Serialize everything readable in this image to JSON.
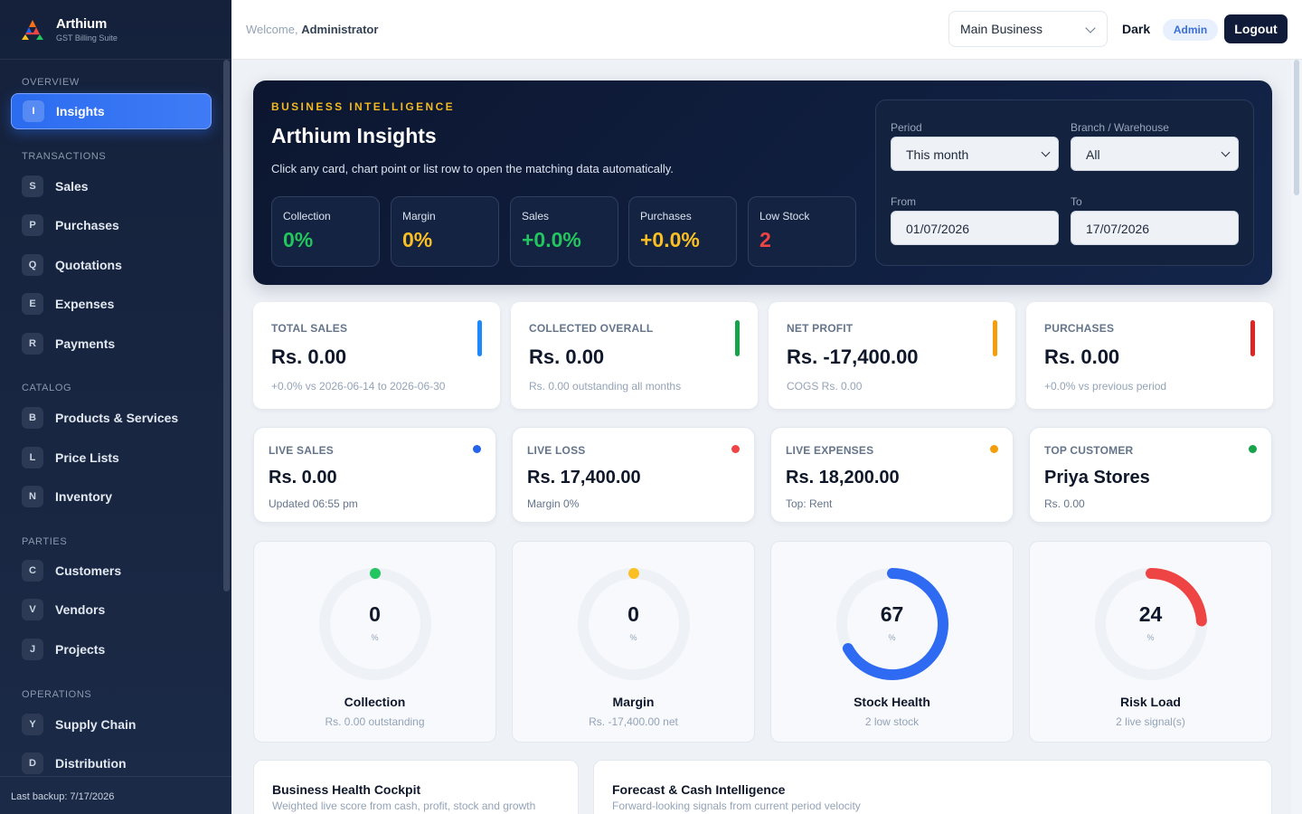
{
  "brand": {
    "name": "Arthium",
    "subtitle": "GST Billing Suite"
  },
  "sidebar": {
    "sections": [
      {
        "title": "Overview",
        "items": [
          {
            "badge": "I",
            "label": "Insights",
            "active": true
          }
        ]
      },
      {
        "title": "Transactions",
        "items": [
          {
            "badge": "S",
            "label": "Sales"
          },
          {
            "badge": "P",
            "label": "Purchases"
          },
          {
            "badge": "Q",
            "label": "Quotations"
          },
          {
            "badge": "E",
            "label": "Expenses"
          },
          {
            "badge": "R",
            "label": "Payments"
          }
        ]
      },
      {
        "title": "Catalog",
        "items": [
          {
            "badge": "B",
            "label": "Products & Services"
          },
          {
            "badge": "L",
            "label": "Price Lists"
          },
          {
            "badge": "N",
            "label": "Inventory"
          }
        ]
      },
      {
        "title": "Parties",
        "items": [
          {
            "badge": "C",
            "label": "Customers"
          },
          {
            "badge": "V",
            "label": "Vendors"
          },
          {
            "badge": "J",
            "label": "Projects"
          }
        ]
      },
      {
        "title": "Operations",
        "items": [
          {
            "badge": "Y",
            "label": "Supply Chain"
          },
          {
            "badge": "D",
            "label": "Distribution"
          }
        ]
      }
    ],
    "backup": "Last backup: 7/17/2026"
  },
  "topbar": {
    "welcome_prefix": "Welcome,",
    "user": "Administrator",
    "business": "Main Business",
    "theme_toggle": "Dark",
    "role": "Admin",
    "logout": "Logout"
  },
  "hero": {
    "eyebrow": "BUSINESS INTELLIGENCE",
    "title": "Arthium Insights",
    "subtitle": "Click any card, chart point or list row to open the matching data automatically.",
    "metrics": [
      {
        "label": "Collection",
        "value": "0%",
        "color": "#22c55e"
      },
      {
        "label": "Margin",
        "value": "0%",
        "color": "#fbbf24"
      },
      {
        "label": "Sales",
        "value": "+0.0%",
        "color": "#22c55e"
      },
      {
        "label": "Purchases",
        "value": "+0.0%",
        "color": "#fbbf24"
      },
      {
        "label": "Low Stock",
        "value": "2",
        "color": "#ef4444"
      }
    ],
    "filters": {
      "period_label": "Period",
      "period_value": "This month",
      "branch_label": "Branch / Warehouse",
      "branch_value": "All",
      "from_label": "From",
      "from_value": "01/07/2026",
      "to_label": "To",
      "to_value": "17/07/2026"
    }
  },
  "kpis": [
    {
      "label": "TOTAL SALES",
      "value": "Rs. 0.00",
      "sub": "+0.0% vs 2026-06-14 to 2026-06-30",
      "color": "#1e88ff"
    },
    {
      "label": "COLLECTED OVERALL",
      "value": "Rs. 0.00",
      "sub": "Rs. 0.00 outstanding all months",
      "color": "#16a34a"
    },
    {
      "label": "NET PROFIT",
      "value": "Rs. -17,400.00",
      "sub": "COGS Rs. 0.00",
      "color": "#f59e0b"
    },
    {
      "label": "PURCHASES",
      "value": "Rs. 0.00",
      "sub": "+0.0% vs previous period",
      "color": "#dc2626"
    }
  ],
  "live": [
    {
      "label": "LIVE SALES",
      "value": "Rs. 0.00",
      "sub": "Updated 06:55 pm",
      "color": "#2563eb"
    },
    {
      "label": "LIVE LOSS",
      "value": "Rs. 17,400.00",
      "sub": "Margin 0%",
      "color": "#ef4444"
    },
    {
      "label": "LIVE EXPENSES",
      "value": "Rs. 18,200.00",
      "sub": "Top: Rent",
      "color": "#f59e0b"
    },
    {
      "label": "TOP CUSTOMER",
      "value": "Priya Stores",
      "sub": "Rs. 0.00",
      "color": "#16a34a"
    }
  ],
  "gauges": [
    {
      "value": "0",
      "unit": "%",
      "name": "Collection",
      "sub": "Rs. 0.00 outstanding",
      "percent": 0,
      "color": "#22c55e"
    },
    {
      "value": "0",
      "unit": "%",
      "name": "Margin",
      "sub": "Rs. -17,400.00 net",
      "percent": 0,
      "color": "#fbbf24"
    },
    {
      "value": "67",
      "unit": "%",
      "name": "Stock Health",
      "sub": "2 low stock",
      "percent": 67,
      "color": "#2f6bf2"
    },
    {
      "value": "24",
      "unit": "%",
      "name": "Risk Load",
      "sub": "2 live signal(s)",
      "percent": 24,
      "color": "#ef4444"
    }
  ],
  "panels": [
    {
      "title": "Business Health Cockpit",
      "subtitle": "Weighted live score from cash, profit, stock and growth"
    },
    {
      "title": "Forecast & Cash Intelligence",
      "subtitle": "Forward-looking signals from current period velocity"
    }
  ]
}
